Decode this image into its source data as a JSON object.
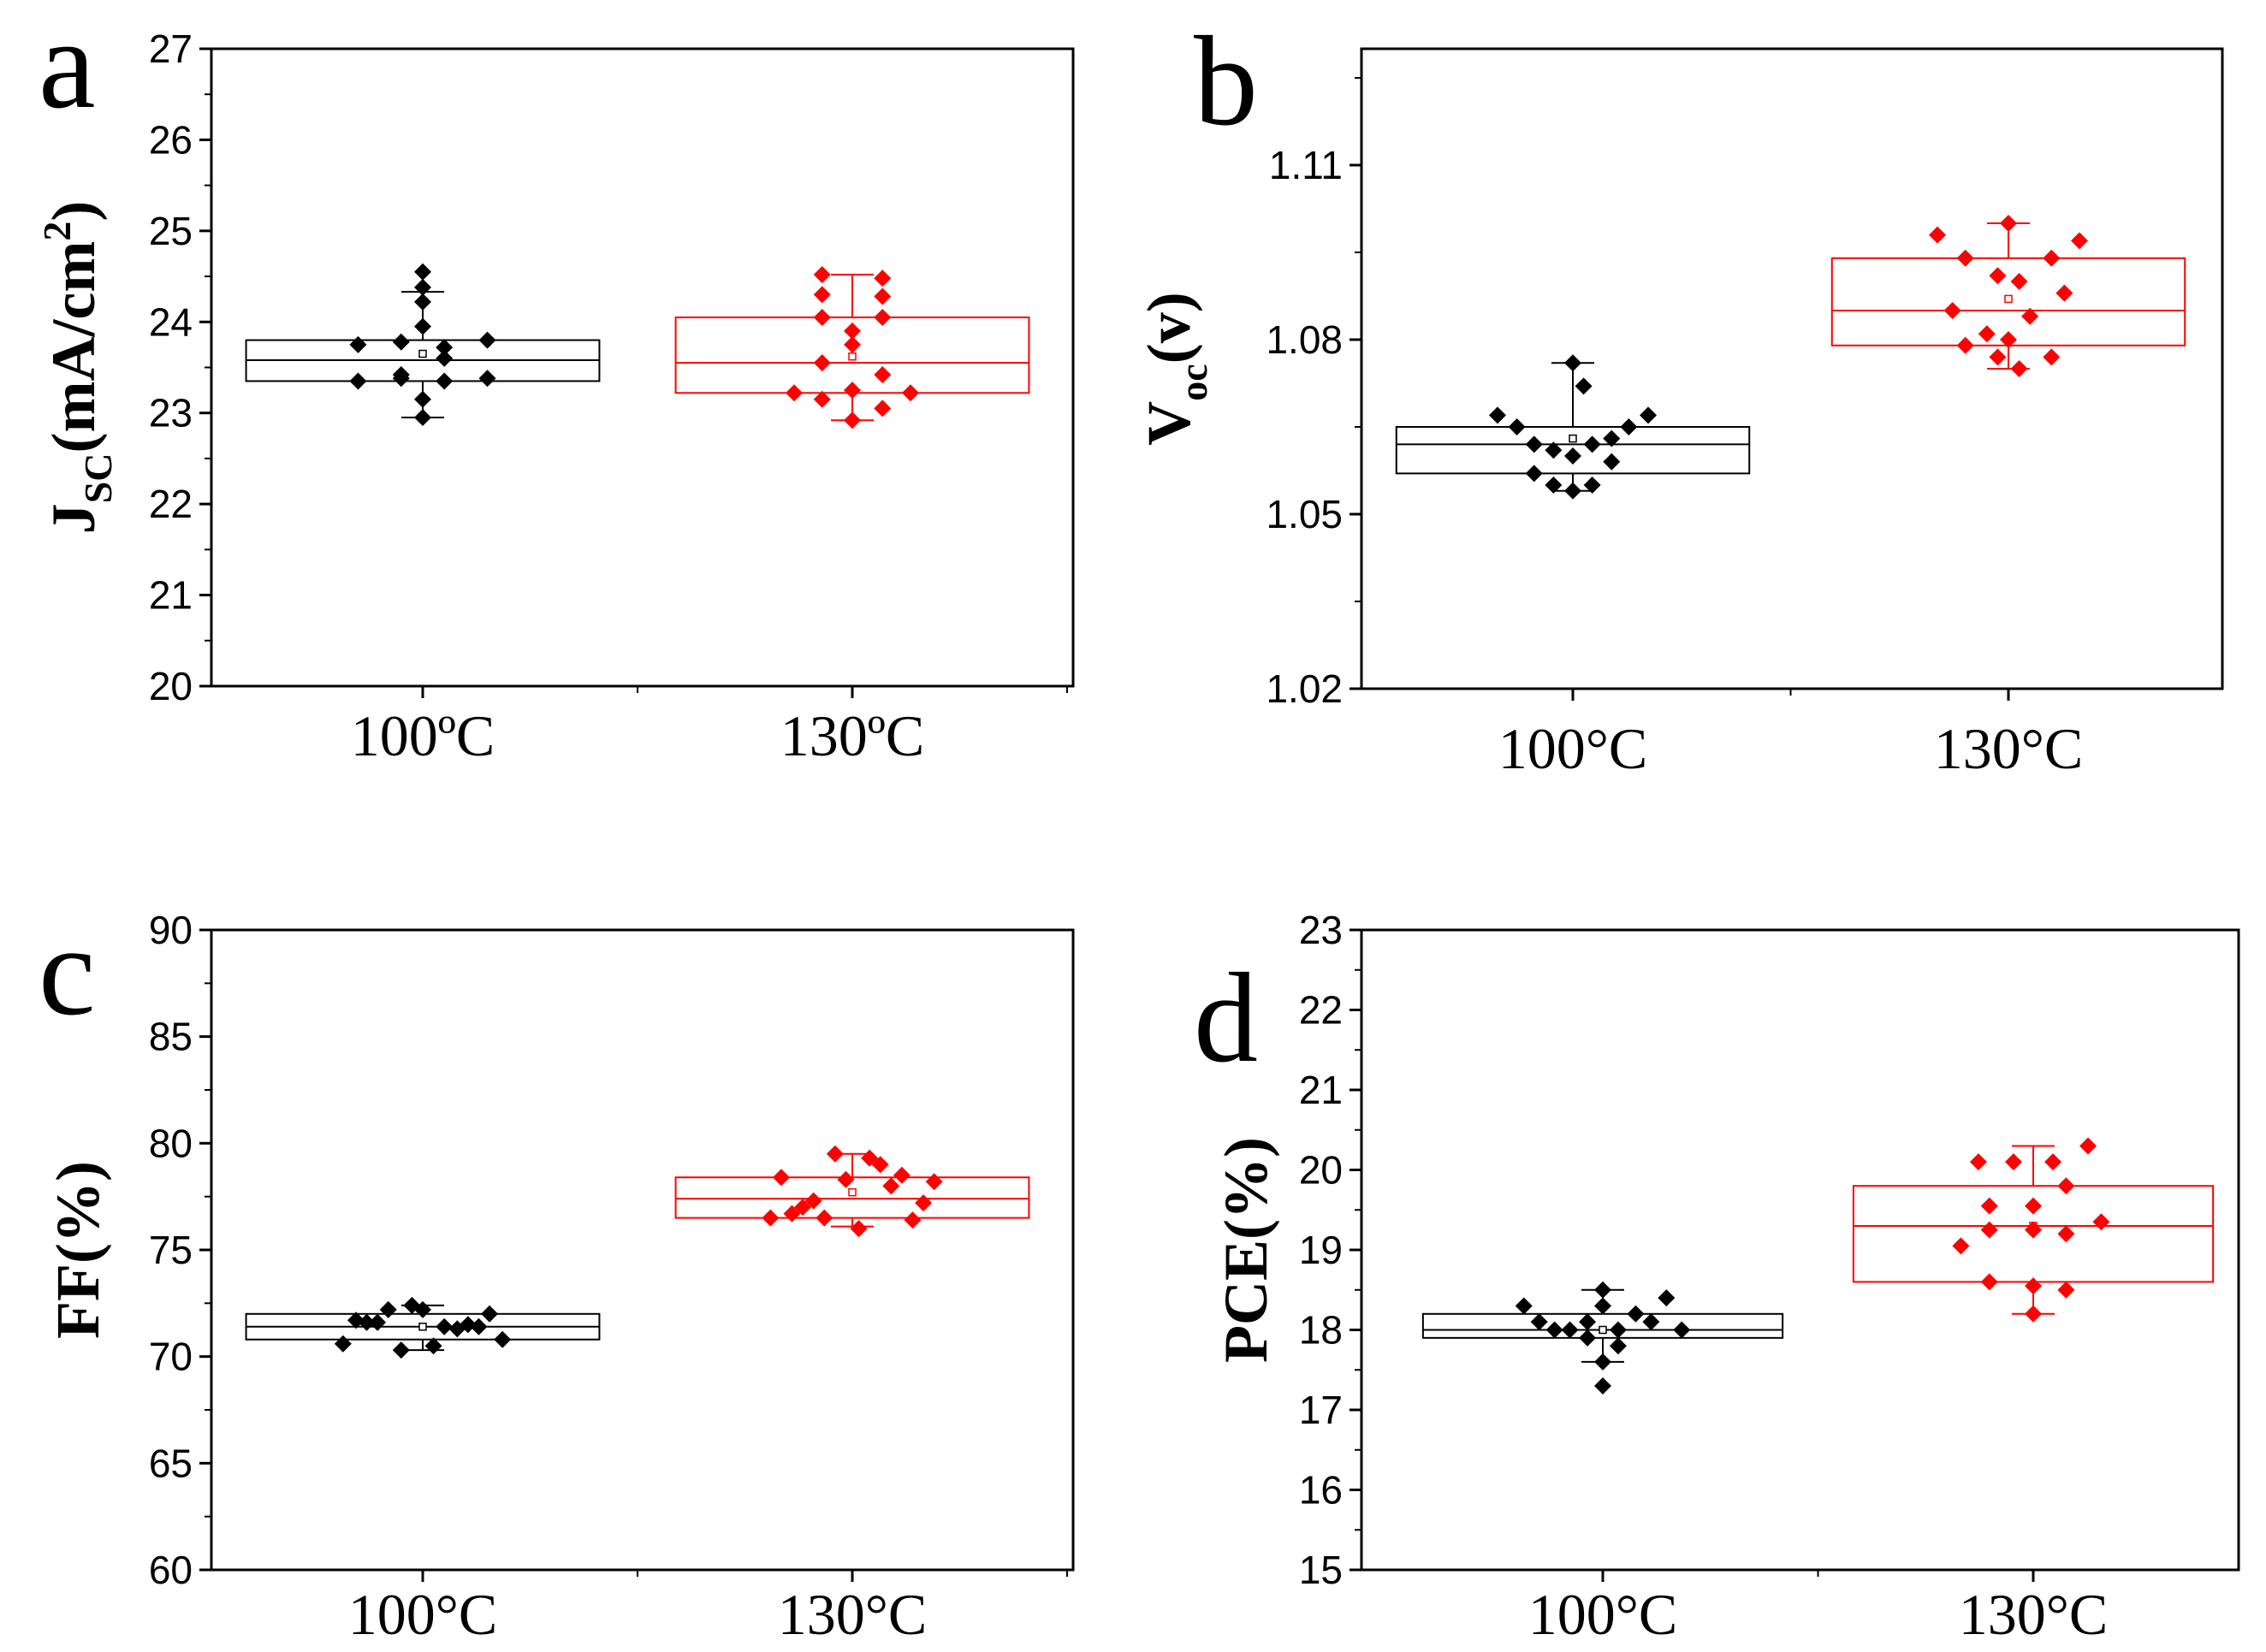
{
  "colors": {
    "series_100": "#000000",
    "series_130": "#ff0000",
    "axis": "#000000"
  },
  "chart_data": [
    {
      "type": "box",
      "panel_letter": "a",
      "ylabel": "J",
      "ylabel_sub": "SC",
      "ylabel_suffix": "(mA/cm",
      "ylabel_sup": "2",
      "ylabel_close": ")",
      "ylim": [
        20,
        27
      ],
      "yticks": [
        "20",
        "21",
        "22",
        "23",
        "24",
        "25",
        "26",
        "27"
      ],
      "categories": [
        "100ºC",
        "130ºC"
      ],
      "series": [
        {
          "name": "100ºC",
          "box": {
            "q1": 23.35,
            "median": 23.58,
            "q3": 23.8,
            "whisker_low": 22.95,
            "whisker_high": 24.33,
            "mean": 23.65
          },
          "points": [
            [
              -0.3,
              23.75
            ],
            [
              -0.3,
              23.35
            ],
            [
              -0.1,
              23.78
            ],
            [
              -0.1,
              23.42
            ],
            [
              -0.1,
              23.38
            ],
            [
              0.0,
              24.55
            ],
            [
              0.0,
              24.38
            ],
            [
              0.0,
              24.22
            ],
            [
              0.0,
              23.95
            ],
            [
              0.0,
              23.15
            ],
            [
              0.0,
              22.95
            ],
            [
              0.1,
              23.72
            ],
            [
              0.1,
              23.6
            ],
            [
              0.1,
              23.35
            ],
            [
              0.3,
              23.8
            ],
            [
              0.3,
              23.38
            ]
          ]
        },
        {
          "name": "130ºC",
          "box": {
            "q1": 23.22,
            "median": 23.55,
            "q3": 24.05,
            "whisker_low": 22.92,
            "whisker_high": 24.52,
            "mean": 23.62
          },
          "points": [
            [
              -0.27,
              23.22
            ],
            [
              -0.14,
              24.52
            ],
            [
              -0.14,
              24.3
            ],
            [
              -0.14,
              24.05
            ],
            [
              -0.14,
              23.55
            ],
            [
              -0.14,
              23.15
            ],
            [
              0.0,
              23.9
            ],
            [
              0.0,
              23.75
            ],
            [
              0.0,
              23.25
            ],
            [
              0.0,
              22.92
            ],
            [
              0.14,
              24.48
            ],
            [
              0.14,
              24.28
            ],
            [
              0.14,
              24.05
            ],
            [
              0.14,
              23.42
            ],
            [
              0.14,
              23.05
            ],
            [
              0.27,
              23.22
            ]
          ]
        }
      ]
    },
    {
      "type": "box",
      "panel_letter": "b",
      "ylabel": "V",
      "ylabel_sub": "oc",
      "ylabel_suffix": "(v)",
      "ylabel_sup": "",
      "ylabel_close": "",
      "ylim": [
        1.02,
        1.13
      ],
      "yticks": [
        "1.02",
        "1.05",
        "1.08",
        "1.11"
      ],
      "categories": [
        "100°C",
        "130°C"
      ],
      "series": [
        {
          "name": "100°C",
          "box": {
            "q1": 1.057,
            "median": 1.062,
            "q3": 1.065,
            "whisker_low": 1.054,
            "whisker_high": 1.076,
            "mean": 1.063
          },
          "points": [
            [
              -0.35,
              1.067
            ],
            [
              -0.26,
              1.065
            ],
            [
              -0.18,
              1.062
            ],
            [
              -0.18,
              1.057
            ],
            [
              -0.09,
              1.061
            ],
            [
              -0.09,
              1.055
            ],
            [
              0.0,
              1.076
            ],
            [
              0.0,
              1.06
            ],
            [
              0.0,
              1.054
            ],
            [
              0.05,
              1.072
            ],
            [
              0.09,
              1.062
            ],
            [
              0.09,
              1.055
            ],
            [
              0.18,
              1.063
            ],
            [
              0.18,
              1.059
            ],
            [
              0.26,
              1.065
            ],
            [
              0.35,
              1.067
            ]
          ]
        },
        {
          "name": "130°C",
          "box": {
            "q1": 1.079,
            "median": 1.085,
            "q3": 1.094,
            "whisker_low": 1.075,
            "whisker_high": 1.1,
            "mean": 1.087
          },
          "points": [
            [
              -0.33,
              1.098
            ],
            [
              -0.26,
              1.085
            ],
            [
              -0.2,
              1.094
            ],
            [
              -0.2,
              1.079
            ],
            [
              -0.1,
              1.081
            ],
            [
              -0.05,
              1.091
            ],
            [
              -0.05,
              1.077
            ],
            [
              0.0,
              1.1
            ],
            [
              0.0,
              1.08
            ],
            [
              0.05,
              1.09
            ],
            [
              0.05,
              1.075
            ],
            [
              0.1,
              1.084
            ],
            [
              0.2,
              1.094
            ],
            [
              0.2,
              1.077
            ],
            [
              0.26,
              1.088
            ],
            [
              0.33,
              1.097
            ]
          ]
        }
      ]
    },
    {
      "type": "box",
      "panel_letter": "c",
      "ylabel": "FF(%)",
      "ylabel_sub": "",
      "ylabel_suffix": "",
      "ylabel_sup": "",
      "ylabel_close": "",
      "ylim": [
        60,
        90
      ],
      "yticks": [
        "60",
        "65",
        "70",
        "75",
        "80",
        "85",
        "90"
      ],
      "categories": [
        "100°C",
        "130°C"
      ],
      "series": [
        {
          "name": "100°C",
          "box": {
            "q1": 70.8,
            "median": 71.4,
            "q3": 72.0,
            "whisker_low": 70.3,
            "whisker_high": 72.4,
            "mean": 71.4
          },
          "points": [
            [
              -0.37,
              70.6
            ],
            [
              -0.31,
              71.7
            ],
            [
              -0.26,
              71.6
            ],
            [
              -0.21,
              71.6
            ],
            [
              -0.16,
              72.2
            ],
            [
              -0.1,
              70.3
            ],
            [
              -0.05,
              72.4
            ],
            [
              0.0,
              72.2
            ],
            [
              0.05,
              70.5
            ],
            [
              0.1,
              71.4
            ],
            [
              0.16,
              71.3
            ],
            [
              0.21,
              71.5
            ],
            [
              0.26,
              71.4
            ],
            [
              0.31,
              72.0
            ],
            [
              0.37,
              70.8
            ]
          ]
        },
        {
          "name": "130°C",
          "box": {
            "q1": 76.5,
            "median": 77.4,
            "q3": 78.4,
            "whisker_low": 76.1,
            "whisker_high": 79.5,
            "mean": 77.7
          },
          "points": [
            [
              -0.38,
              76.5
            ],
            [
              -0.33,
              78.4
            ],
            [
              -0.28,
              76.7
            ],
            [
              -0.23,
              77.0
            ],
            [
              -0.18,
              77.3
            ],
            [
              -0.13,
              76.5
            ],
            [
              -0.08,
              79.5
            ],
            [
              -0.03,
              78.3
            ],
            [
              0.03,
              76.0
            ],
            [
              0.08,
              79.3
            ],
            [
              0.13,
              79.0
            ],
            [
              0.18,
              78.0
            ],
            [
              0.23,
              78.5
            ],
            [
              0.28,
              76.4
            ],
            [
              0.33,
              77.2
            ],
            [
              0.38,
              78.2
            ]
          ]
        }
      ]
    },
    {
      "type": "box",
      "panel_letter": "d",
      "ylabel": "PCE(%)",
      "ylabel_sub": "",
      "ylabel_suffix": "",
      "ylabel_sup": "",
      "ylabel_close": "",
      "ylim": [
        15,
        23
      ],
      "yticks": [
        "15",
        "16",
        "17",
        "18",
        "19",
        "20",
        "21",
        "22",
        "23"
      ],
      "categories": [
        "100°C",
        "130°C"
      ],
      "series": [
        {
          "name": "100°C",
          "box": {
            "q1": 17.9,
            "median": 18.0,
            "q3": 18.2,
            "whisker_low": 17.6,
            "whisker_high": 18.5,
            "mean": 18.0
          },
          "points": [
            [
              -0.36,
              18.3
            ],
            [
              -0.29,
              18.1
            ],
            [
              -0.22,
              18.0
            ],
            [
              -0.15,
              18.0
            ],
            [
              -0.07,
              18.1
            ],
            [
              -0.07,
              17.9
            ],
            [
              0.0,
              18.5
            ],
            [
              0.0,
              18.3
            ],
            [
              0.0,
              17.6
            ],
            [
              0.0,
              17.3
            ],
            [
              0.07,
              18.0
            ],
            [
              0.07,
              17.8
            ],
            [
              0.15,
              18.2
            ],
            [
              0.22,
              18.1
            ],
            [
              0.29,
              18.4
            ],
            [
              0.36,
              18.0
            ]
          ]
        },
        {
          "name": "130°C",
          "box": {
            "q1": 18.6,
            "median": 19.3,
            "q3": 19.8,
            "whisker_low": 18.2,
            "whisker_high": 20.3,
            "mean": 19.3
          },
          "points": [
            [
              -0.33,
              19.05
            ],
            [
              -0.25,
              20.1
            ],
            [
              -0.2,
              19.55
            ],
            [
              -0.2,
              19.25
            ],
            [
              -0.2,
              18.6
            ],
            [
              -0.09,
              20.1
            ],
            [
              0.0,
              19.55
            ],
            [
              0.0,
              19.25
            ],
            [
              0.0,
              18.55
            ],
            [
              0.0,
              18.2
            ],
            [
              0.09,
              20.1
            ],
            [
              0.15,
              19.8
            ],
            [
              0.15,
              19.2
            ],
            [
              0.15,
              18.5
            ],
            [
              0.25,
              20.3
            ],
            [
              0.31,
              19.35
            ]
          ]
        }
      ]
    }
  ]
}
